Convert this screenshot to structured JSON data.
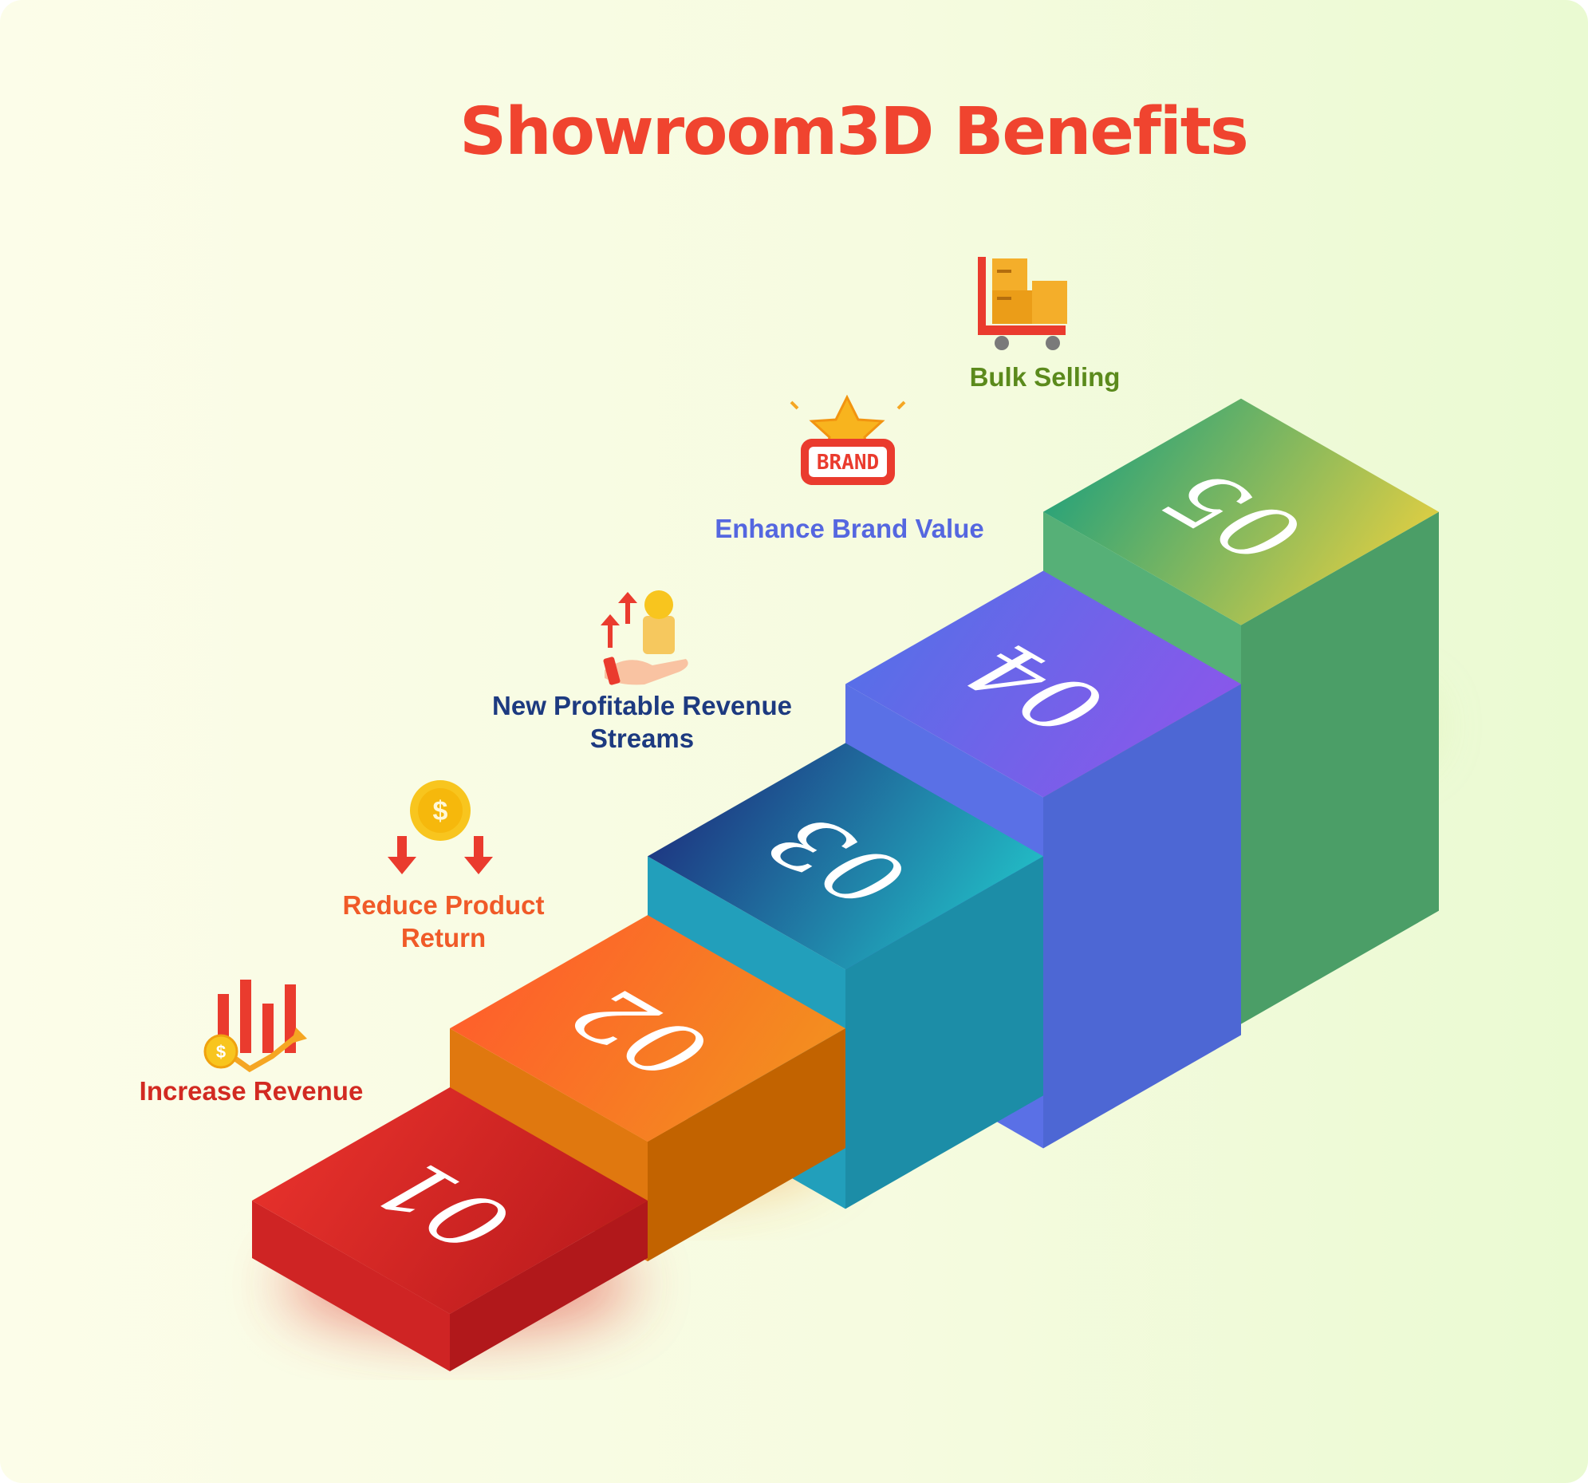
{
  "title": "Showroom3D Benefits",
  "colors": {
    "title": "#f0442f",
    "background": "#f6fbe0"
  },
  "steps": [
    {
      "number": "01",
      "label": "Increase Revenue",
      "label_color": "#d22a22",
      "icon": "revenue-chart-icon",
      "top_start": "#e8322c",
      "top_end": "#b91a1c",
      "left_color": "#cf2424",
      "right_color": "#c01b1e",
      "glow": "#e23b36"
    },
    {
      "number": "02",
      "label": "Reduce Product Return",
      "label_color": "#f05a28",
      "icon": "coin-down-arrows-icon",
      "top_start": "#ff5c2c",
      "top_end": "#f2921e",
      "left_color": "#e0780f",
      "right_color": "#d36c00",
      "glow": "#f39a2b"
    },
    {
      "number": "03",
      "label": "New Profitable Revenue Streams",
      "label_color": "#1d3a80",
      "icon": "hand-coins-icon",
      "top_start": "#1d2f7e",
      "top_end": "#22c3c9",
      "left_color": "#229fbb",
      "right_color": "#1f9ab6",
      "glow": "#2bb3c5"
    },
    {
      "number": "04",
      "label": "Enhance Brand Value",
      "label_color": "#5567e0",
      "icon": "brand-star-icon",
      "top_start": "#5470e8",
      "top_end": "#8c56ea",
      "left_color": "#5a70e6",
      "right_color": "#5470e6",
      "glow": "#8a82ea"
    },
    {
      "number": "05",
      "label": "Bulk Selling",
      "label_color": "#5b8a1c",
      "icon": "cart-boxes-icon",
      "top_start": "#1fa07c",
      "top_end": "#e8d040",
      "left_color": "#56b077",
      "right_color": "#52ac70",
      "glow": "#bfe27a"
    }
  ]
}
